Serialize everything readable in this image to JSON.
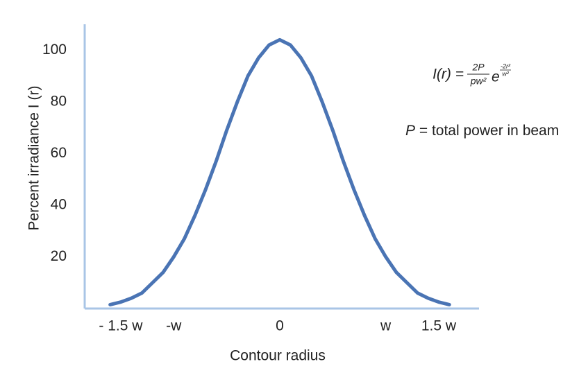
{
  "chart_data": {
    "type": "line",
    "x_label": "Contour radius",
    "y_label": "Percent irradiance I (r)",
    "x": [
      -1.6,
      -1.5,
      -1.4,
      -1.3,
      -1.2,
      -1.1,
      -1.0,
      -0.9,
      -0.8,
      -0.7,
      -0.6,
      -0.5,
      -0.4,
      -0.3,
      -0.2,
      -0.1,
      0,
      0.1,
      0.2,
      0.3,
      0.4,
      0.5,
      0.6,
      0.7,
      0.8,
      0.9,
      1.0,
      1.1,
      1.2,
      1.3,
      1.4,
      1.5,
      1.6
    ],
    "values": [
      1.5,
      2.5,
      4,
      6,
      10,
      14,
      20,
      27,
      36,
      46,
      57,
      69,
      80,
      90,
      97,
      102,
      104,
      102,
      97,
      90,
      80,
      69,
      57,
      46,
      36,
      27,
      20,
      14,
      10,
      6,
      4,
      2.5,
      1.5
    ],
    "color": "#4a74b4",
    "axis_color": "#a9c5e6",
    "xlim": [
      -1.84,
      1.88
    ],
    "ylim": [
      0,
      110
    ],
    "xticks": [
      {
        "value": -1.5,
        "label": "- 1.5 w"
      },
      {
        "value": -1,
        "label": "-w"
      },
      0,
      {
        "value": 1,
        "label": "w"
      },
      {
        "value": 1.5,
        "label": "1.5 w"
      }
    ],
    "yticks": [
      20,
      40,
      60,
      80,
      100
    ],
    "grid": false,
    "formula": {
      "lhs": "I(r) =",
      "numerator": "2P",
      "denominator": "pw²",
      "base": "e",
      "exp_numerator": "-2r²",
      "exp_denominator": "w²"
    },
    "note": {
      "symbol": "P",
      "text": "= total power in beam"
    }
  }
}
